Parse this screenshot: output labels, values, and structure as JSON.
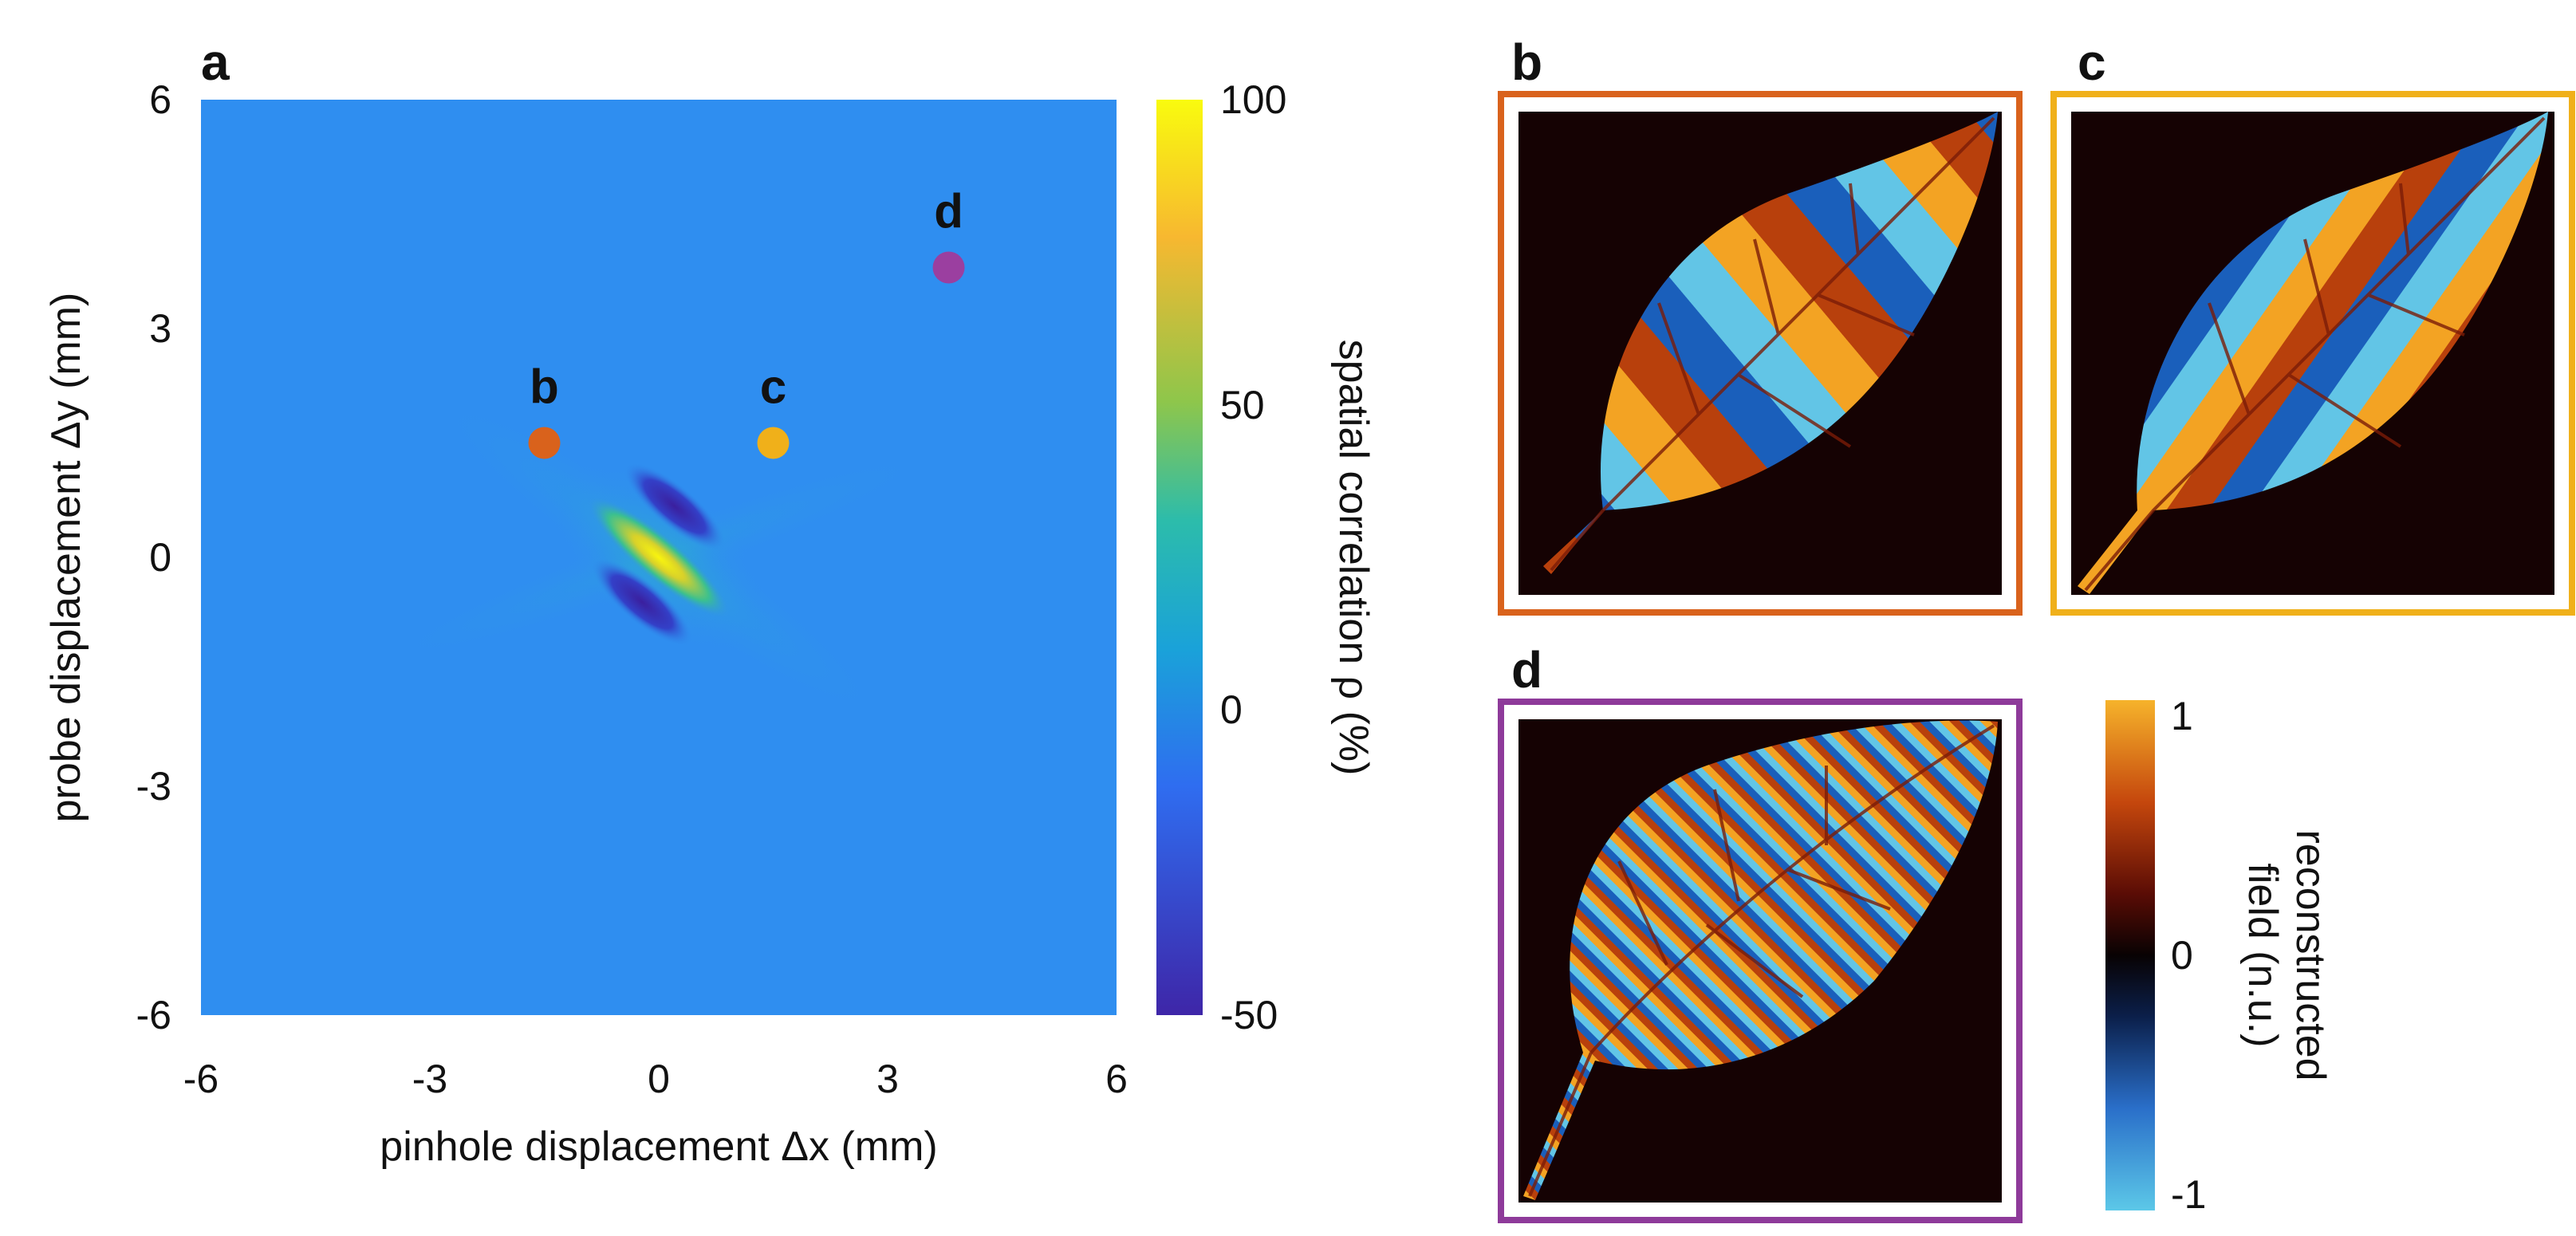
{
  "panels": {
    "a": "a",
    "b": "b",
    "c": "c",
    "d": "d"
  },
  "chart_data": [
    {
      "type": "heatmap",
      "panel": "a",
      "xlabel": "pinhole displacement Δx (mm)",
      "ylabel": "probe displacement Δy (mm)",
      "xlim": [
        -6,
        6
      ],
      "ylim": [
        -6,
        6
      ],
      "x_ticks": [
        "-6",
        "-3",
        "0",
        "3",
        "6"
      ],
      "y_ticks": [
        "6",
        "3",
        "0",
        "-3",
        "-6"
      ],
      "colorbar": {
        "label": "spatial correlation ρ (%)",
        "range": [
          -50,
          100
        ],
        "ticks": [
          "100",
          "50",
          "0",
          "-50"
        ],
        "colors": [
          "#3e26a8",
          "#2f6df0",
          "#1aa2d9",
          "#2cbcab",
          "#8ec64b",
          "#f7b830",
          "#f9fb0e"
        ]
      },
      "background_value": 0,
      "features": [
        {
          "name": "central maximum",
          "x": 0,
          "y": 0,
          "value": 100
        },
        {
          "name": "side minimum",
          "x": 0,
          "y": 0.8,
          "value": -50
        },
        {
          "name": "side minimum",
          "x": -0.2,
          "y": -0.6,
          "value": -50
        }
      ],
      "markers": [
        {
          "label": "b",
          "x": -1.5,
          "y": 1.5,
          "color": "#d9621c"
        },
        {
          "label": "c",
          "x": 1.5,
          "y": 1.5,
          "color": "#f0b01a"
        },
        {
          "label": "d",
          "x": 3.8,
          "y": 3.8,
          "color": "#9b3fa0"
        }
      ]
    }
  ],
  "field_colorbar": {
    "label_line1": "reconstructed",
    "label_line2": "field (n.u.)",
    "ticks": [
      "1",
      "0",
      "-1"
    ],
    "colors": [
      "#f6b32b",
      "#c5470d",
      "#5a0c05",
      "#080203",
      "#0b1f4a",
      "#2a6fc9",
      "#5cc8e8"
    ]
  },
  "frames": {
    "b": "#d9621c",
    "c": "#f0b01a",
    "d": "#8e3a9a"
  }
}
